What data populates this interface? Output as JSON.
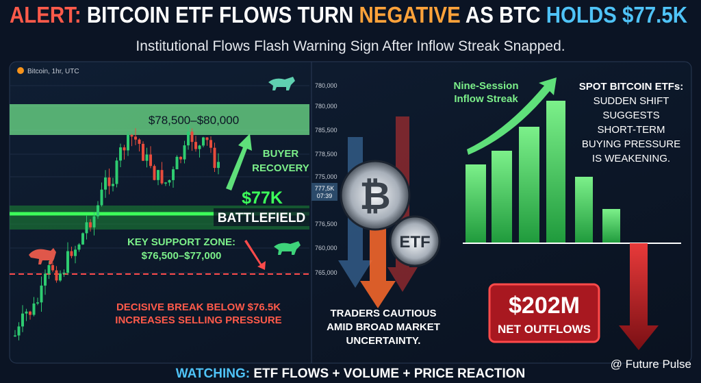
{
  "header": {
    "title_parts": [
      "ALERT:",
      "BITCOIN ETF FLOWS TURN",
      "NEGATIVE",
      "AS BTC",
      "HOLDS $77.5K"
    ],
    "subtitle": "Institutional Flows Flash Warning Sign After Inflow Streak Snapped."
  },
  "price_panel": {
    "symbol": "Bitcoin, 1hr, UTC",
    "axis_labels": [
      "780,000",
      "780,000",
      "785,500",
      "778,500",
      "775,000",
      "776,500",
      "760,000",
      "765,000"
    ],
    "current_price": "777,5K",
    "timer": "07:39",
    "resistance_zone": "$78,500–$80,000",
    "buyer_recovery": [
      "BUYER",
      "RECOVERY"
    ],
    "battlefield_price": "$77K",
    "battlefield": "BATTLEFIELD",
    "support": [
      "KEY SUPPORT ZONE:",
      "$76,500–$77,000"
    ],
    "warning": [
      "DECISIVE BREAK BELOW $76.5K",
      "INCREASES SELLING PRESSURE"
    ]
  },
  "center": {
    "coin": "₿",
    "etf": "ETF",
    "note": [
      "TRADERS CAUTIOUS",
      "AMID BROAD MARKET",
      "UNCERTAINTY."
    ]
  },
  "flows_panel": {
    "streak": [
      "Nine-Session",
      "Inflow Streak"
    ],
    "etf_heading": "SPOT BITCOIN ETFs:",
    "etf_text": [
      "SUDDEN SHIFT",
      "SUGGESTS",
      "SHORT-TERM",
      "BUYING PRESSURE",
      "IS WEAKENING."
    ],
    "outflow_amount": "$202M",
    "outflow_label": "NET OUTFLOWS"
  },
  "footer": {
    "watching": "WATCHING:",
    "items": "ETF FLOWS + VOLUME + PRICE REACTION",
    "watermark": "@ Future Pulse"
  }
}
